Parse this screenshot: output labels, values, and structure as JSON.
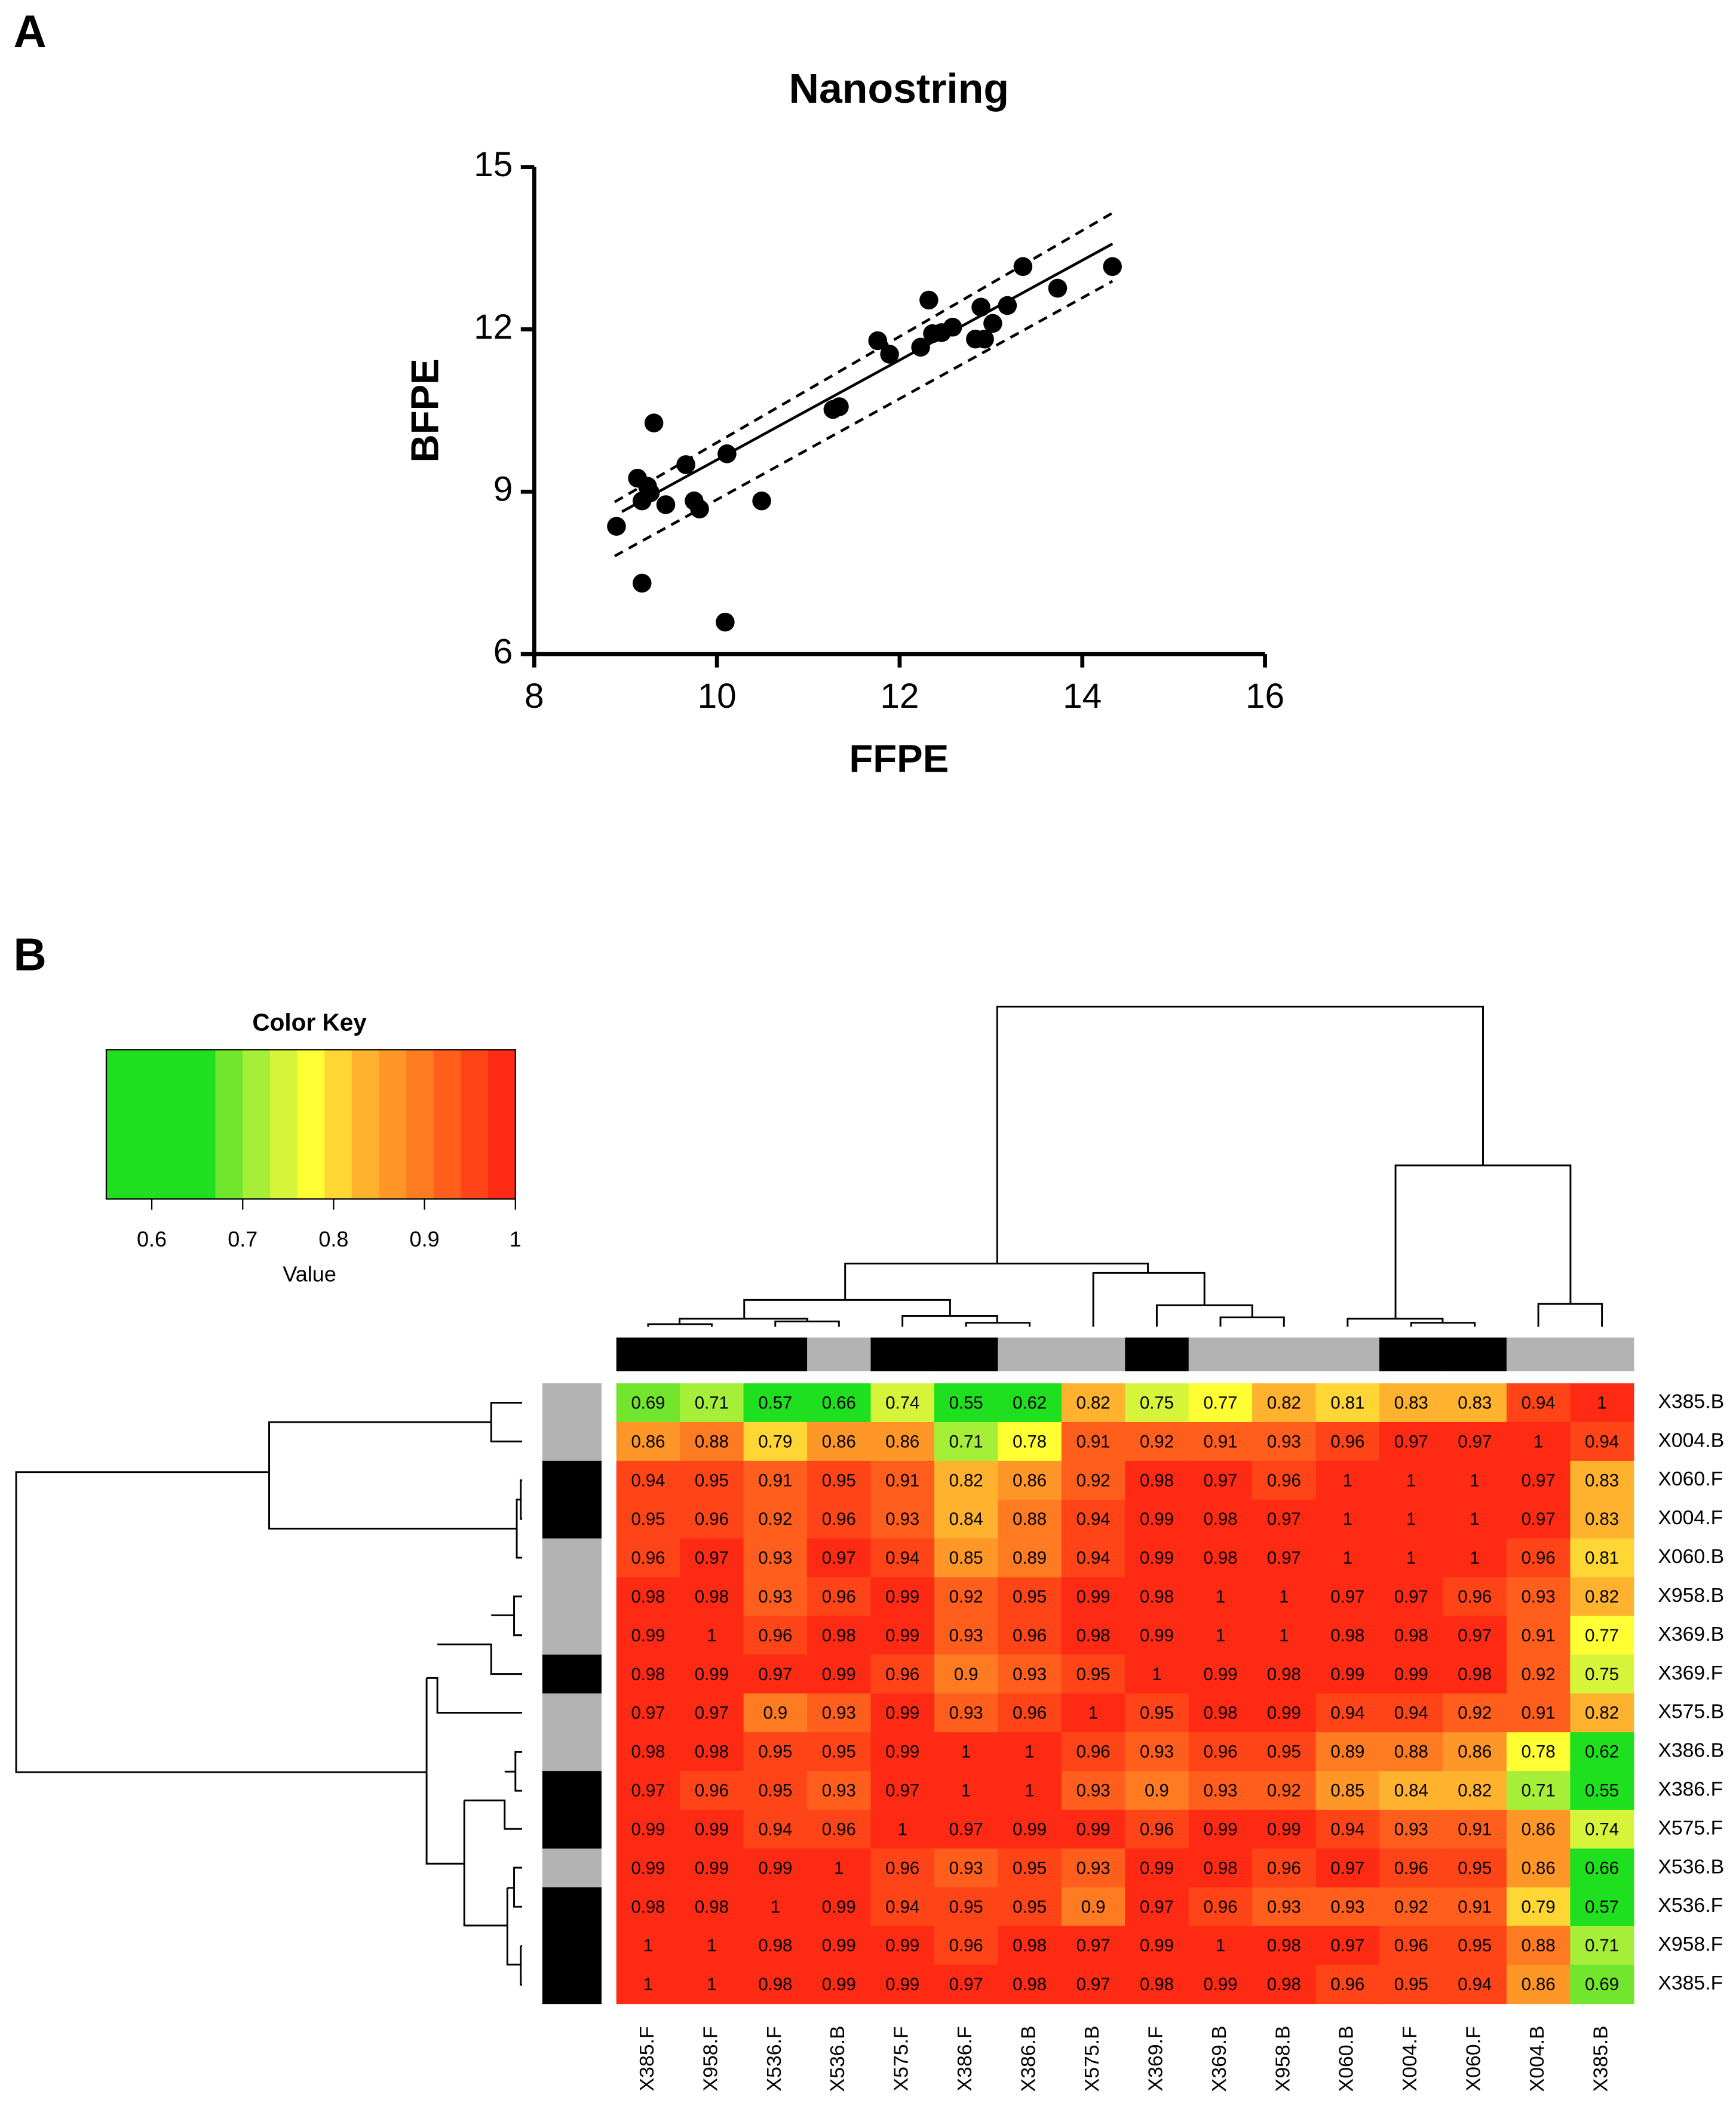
{
  "panel_labels": [
    "A",
    "B"
  ],
  "chart_data": [
    {
      "type": "scatter",
      "title": "Nanostring",
      "xlabel": "FFPE",
      "ylabel": "BFPE",
      "color": "#000000",
      "x": [
        8.9,
        9.13,
        9.24,
        9.18,
        9.31,
        9.27,
        9.18,
        9.44,
        9.66,
        9.75,
        9.81,
        10.11,
        10.09,
        10.49,
        11.27,
        11.34,
        11.76,
        11.89,
        12.23,
        12.32,
        12.36,
        12.46,
        12.58,
        12.83,
        12.89,
        12.93,
        13.02,
        13.18,
        13.35,
        13.73,
        14.33
      ],
      "values": [
        8.36,
        9.25,
        9.1,
        8.83,
        10.27,
        8.98,
        7.31,
        8.76,
        9.5,
        8.83,
        8.68,
        9.7,
        6.59,
        8.83,
        10.52,
        10.57,
        11.79,
        11.54,
        11.67,
        12.54,
        11.92,
        11.94,
        12.04,
        11.82,
        12.41,
        11.82,
        12.11,
        12.44,
        13.16,
        12.76,
        13.16
      ],
      "fit_x": [
        8.96,
        14.33
      ],
      "fit_y": [
        8.63,
        13.58
      ],
      "band_x": [
        8.88,
        14.33
      ],
      "band_upper_y": [
        8.81,
        14.15
      ],
      "band_lower_y": [
        7.81,
        12.89
      ],
      "xlim": [
        8,
        16
      ],
      "xticks": [
        8,
        10,
        12,
        14,
        16
      ],
      "ylim": [
        6,
        15
      ],
      "yticks": [
        6,
        9,
        12,
        15
      ]
    },
    {
      "type": "heatmap",
      "x_categories": [
        "X385.F",
        "X958.F",
        "X536.F",
        "X536.B",
        "X575.F",
        "X386.F",
        "X386.B",
        "X575.B",
        "X369.F",
        "X369.B",
        "X958.B",
        "X060.B",
        "X004.F",
        "X060.F",
        "X004.B",
        "X385.B"
      ],
      "y_categories": [
        "X385.B",
        "X004.B",
        "X060.F",
        "X004.F",
        "X060.B",
        "X958.B",
        "X369.B",
        "X369.F",
        "X575.B",
        "X386.B",
        "X386.F",
        "X575.F",
        "X536.B",
        "X536.F",
        "X958.F",
        "X385.F"
      ],
      "values": [
        [
          0.69,
          0.71,
          0.57,
          0.66,
          0.74,
          0.55,
          0.62,
          0.82,
          0.75,
          0.77,
          0.82,
          0.81,
          0.83,
          0.83,
          0.94,
          1
        ],
        [
          0.86,
          0.88,
          0.79,
          0.86,
          0.86,
          0.71,
          0.78,
          0.91,
          0.92,
          0.91,
          0.93,
          0.96,
          0.97,
          0.97,
          1,
          0.94
        ],
        [
          0.94,
          0.95,
          0.91,
          0.95,
          0.91,
          0.82,
          0.86,
          0.92,
          0.98,
          0.97,
          0.96,
          1,
          1,
          1,
          0.97,
          0.83
        ],
        [
          0.95,
          0.96,
          0.92,
          0.96,
          0.93,
          0.84,
          0.88,
          0.94,
          0.99,
          0.98,
          0.97,
          1,
          1,
          1,
          0.97,
          0.83
        ],
        [
          0.96,
          0.97,
          0.93,
          0.97,
          0.94,
          0.85,
          0.89,
          0.94,
          0.99,
          0.98,
          0.97,
          1,
          1,
          1,
          0.96,
          0.81
        ],
        [
          0.98,
          0.98,
          0.93,
          0.96,
          0.99,
          0.92,
          0.95,
          0.99,
          0.98,
          1,
          1,
          0.97,
          0.97,
          0.96,
          0.93,
          0.82
        ],
        [
          0.99,
          1,
          0.96,
          0.98,
          0.99,
          0.93,
          0.96,
          0.98,
          0.99,
          1,
          1,
          0.98,
          0.98,
          0.97,
          0.91,
          0.77
        ],
        [
          0.98,
          0.99,
          0.97,
          0.99,
          0.96,
          0.9,
          0.93,
          0.95,
          1,
          0.99,
          0.98,
          0.99,
          0.99,
          0.98,
          0.92,
          0.75
        ],
        [
          0.97,
          0.97,
          0.9,
          0.93,
          0.99,
          0.93,
          0.96,
          1,
          0.95,
          0.98,
          0.99,
          0.94,
          0.94,
          0.92,
          0.91,
          0.82
        ],
        [
          0.98,
          0.98,
          0.95,
          0.95,
          0.99,
          1,
          1,
          0.96,
          0.93,
          0.96,
          0.95,
          0.89,
          0.88,
          0.86,
          0.78,
          0.62
        ],
        [
          0.97,
          0.96,
          0.95,
          0.93,
          0.97,
          1,
          1,
          0.93,
          0.9,
          0.93,
          0.92,
          0.85,
          0.84,
          0.82,
          0.71,
          0.55
        ],
        [
          0.99,
          0.99,
          0.94,
          0.96,
          1,
          0.97,
          0.99,
          0.99,
          0.96,
          0.99,
          0.99,
          0.94,
          0.93,
          0.91,
          0.86,
          0.74
        ],
        [
          0.99,
          0.99,
          0.99,
          1,
          0.96,
          0.93,
          0.95,
          0.93,
          0.99,
          0.98,
          0.96,
          0.97,
          0.96,
          0.95,
          0.86,
          0.66
        ],
        [
          0.98,
          0.98,
          1,
          0.99,
          0.94,
          0.95,
          0.95,
          0.9,
          0.97,
          0.96,
          0.93,
          0.93,
          0.92,
          0.91,
          0.79,
          0.57
        ],
        [
          1,
          1,
          0.98,
          0.99,
          0.99,
          0.96,
          0.98,
          0.97,
          0.99,
          1,
          0.98,
          0.97,
          0.96,
          0.95,
          0.88,
          0.71
        ],
        [
          1,
          1,
          0.98,
          0.99,
          0.99,
          0.97,
          0.98,
          0.97,
          0.98,
          0.99,
          0.98,
          0.96,
          0.95,
          0.94,
          0.86,
          0.69
        ]
      ],
      "col_side_colors": [
        "#000000",
        "#000000",
        "#000000",
        "#b3b3b3",
        "#000000",
        "#000000",
        "#b3b3b3",
        "#b3b3b3",
        "#000000",
        "#b3b3b3",
        "#b3b3b3",
        "#b3b3b3",
        "#000000",
        "#000000",
        "#b3b3b3",
        "#b3b3b3"
      ],
      "row_side_colors": [
        "#b3b3b3",
        "#b3b3b3",
        "#000000",
        "#000000",
        "#b3b3b3",
        "#b3b3b3",
        "#b3b3b3",
        "#000000",
        "#b3b3b3",
        "#b3b3b3",
        "#000000",
        "#000000",
        "#b3b3b3",
        "#000000",
        "#000000",
        "#000000"
      ],
      "colorkey": {
        "title": "Color Key",
        "label": "Value",
        "lim": [
          0.55,
          1
        ],
        "ticks": [
          0.6,
          0.7,
          0.8,
          0.9,
          1
        ],
        "breaks": [
          0.55,
          0.67,
          0.7,
          0.73,
          0.76,
          0.79,
          0.82,
          0.85,
          0.88,
          0.91,
          0.94,
          0.97,
          1.0
        ],
        "colors": [
          "#1fe01f",
          "#72e52d",
          "#a5ef38",
          "#d6f53a",
          "#ffff33",
          "#ffd633",
          "#ffb22e",
          "#ff9628",
          "#ff7b22",
          "#ff5e1c",
          "#ff4418",
          "#ff2a14"
        ]
      }
    }
  ]
}
